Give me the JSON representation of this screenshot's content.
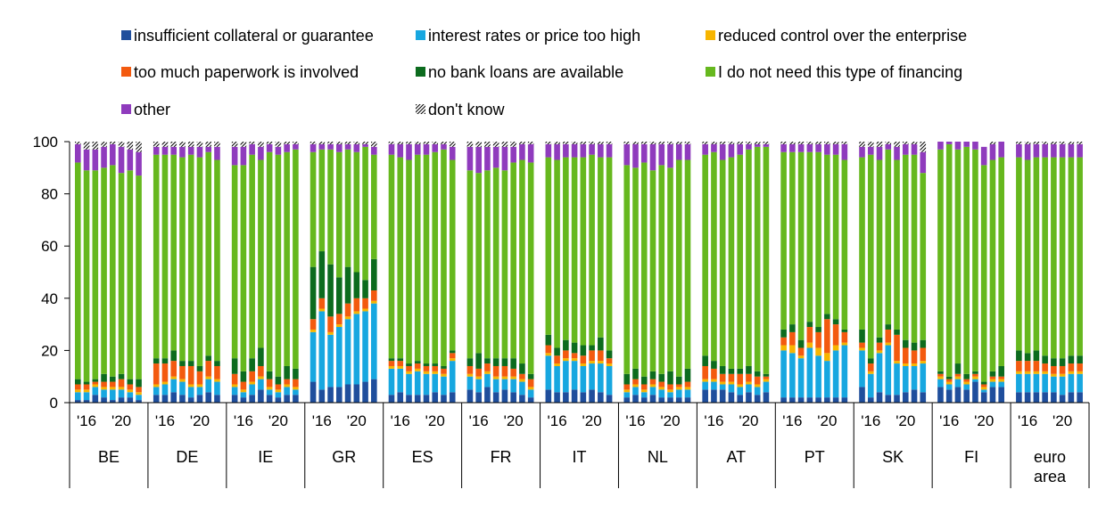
{
  "chart_data": {
    "type": "bar",
    "stacked": true,
    "ylim": [
      0,
      100
    ],
    "yticks": [
      0,
      20,
      40,
      60,
      80,
      100
    ],
    "grid": false,
    "legend_position": "top",
    "years_per_group": 8,
    "year_tick_labels": [
      "'16",
      "'20"
    ],
    "series": [
      {
        "name": "insufficient collateral or guarantee",
        "color": "#1f4e9c"
      },
      {
        "name": "interest rates or price too high",
        "color": "#17a7e0"
      },
      {
        "name": "reduced control over the enterprise",
        "color": "#f7b500"
      },
      {
        "name": "too much paperwork is involved",
        "color": "#f35a0f"
      },
      {
        "name": "no bank loans are available",
        "color": "#0c6b1e"
      },
      {
        "name": "I do not need this type of financing",
        "color": "#66b81e"
      },
      {
        "name": "other",
        "color": "#8f3bbd"
      },
      {
        "name": "don't know",
        "color": "#ffffff",
        "pattern": "hatch"
      }
    ],
    "groups": [
      {
        "label": [
          "BE"
        ],
        "bars": [
          [
            1,
            3,
            1,
            2,
            2,
            83,
            7,
            1
          ],
          [
            1,
            3,
            1,
            2,
            1,
            81,
            8,
            3
          ],
          [
            3,
            3,
            1,
            1,
            1,
            80,
            8,
            3
          ],
          [
            2,
            3,
            1,
            2,
            3,
            79,
            8,
            2
          ],
          [
            1,
            4,
            1,
            2,
            2,
            81,
            8,
            1
          ],
          [
            2,
            3,
            1,
            3,
            2,
            77,
            10,
            2
          ],
          [
            2,
            2,
            1,
            2,
            2,
            80,
            8,
            3
          ],
          [
            1,
            2,
            1,
            2,
            3,
            78,
            9,
            4
          ]
        ]
      },
      {
        "label": [
          "DE"
        ],
        "bars": [
          [
            3,
            3,
            1,
            8,
            2,
            78,
            3,
            2
          ],
          [
            3,
            4,
            1,
            7,
            2,
            78,
            3,
            2
          ],
          [
            4,
            5,
            1,
            6,
            4,
            75,
            3,
            2
          ],
          [
            3,
            5,
            1,
            5,
            2,
            78,
            4,
            2
          ],
          [
            2,
            4,
            1,
            7,
            2,
            79,
            3,
            2
          ],
          [
            3,
            3,
            1,
            5,
            2,
            80,
            4,
            2
          ],
          [
            4,
            5,
            1,
            6,
            2,
            78,
            2,
            2
          ],
          [
            3,
            5,
            1,
            5,
            2,
            77,
            5,
            2
          ]
        ]
      },
      {
        "label": [
          "IE"
        ],
        "bars": [
          [
            3,
            3,
            1,
            4,
            6,
            74,
            7,
            2
          ],
          [
            2,
            2,
            1,
            3,
            4,
            79,
            7,
            2
          ],
          [
            3,
            4,
            1,
            4,
            5,
            78,
            4,
            1
          ],
          [
            5,
            4,
            1,
            4,
            7,
            72,
            5,
            2
          ],
          [
            3,
            2,
            1,
            3,
            3,
            84,
            3,
            1
          ],
          [
            2,
            2,
            1,
            2,
            3,
            85,
            3,
            2
          ],
          [
            3,
            3,
            1,
            2,
            5,
            82,
            3,
            1
          ],
          [
            3,
            2,
            1,
            3,
            4,
            84,
            2,
            1
          ]
        ]
      },
      {
        "label": [
          "GR"
        ],
        "bars": [
          [
            8,
            19,
            1,
            4,
            20,
            44,
            3,
            1
          ],
          [
            5,
            30,
            1,
            4,
            18,
            39,
            2,
            1
          ],
          [
            6,
            20,
            1,
            6,
            20,
            44,
            2,
            1
          ],
          [
            6,
            23,
            1,
            4,
            14,
            48,
            3,
            1
          ],
          [
            7,
            25,
            1,
            5,
            14,
            45,
            2,
            1
          ],
          [
            7,
            27,
            1,
            5,
            10,
            46,
            3,
            1
          ],
          [
            8,
            27,
            1,
            4,
            7,
            51,
            1,
            1
          ],
          [
            9,
            29,
            1,
            4,
            12,
            40,
            3,
            2
          ]
        ]
      },
      {
        "label": [
          "ES"
        ],
        "bars": [
          [
            3,
            10,
            1,
            2,
            1,
            78,
            4,
            1
          ],
          [
            4,
            9,
            1,
            2,
            1,
            77,
            5,
            1
          ],
          [
            3,
            8,
            1,
            2,
            1,
            78,
            6,
            1
          ],
          [
            3,
            9,
            1,
            2,
            1,
            79,
            4,
            1
          ],
          [
            3,
            8,
            1,
            2,
            1,
            80,
            4,
            1
          ],
          [
            4,
            7,
            1,
            2,
            1,
            81,
            3,
            1
          ],
          [
            3,
            7,
            1,
            2,
            1,
            83,
            2,
            1
          ],
          [
            4,
            12,
            1,
            2,
            1,
            73,
            5,
            2
          ]
        ]
      },
      {
        "label": [
          "FR"
        ],
        "bars": [
          [
            5,
            5,
            1,
            3,
            3,
            72,
            9,
            2
          ],
          [
            4,
            5,
            1,
            3,
            6,
            69,
            10,
            2
          ],
          [
            6,
            5,
            1,
            3,
            2,
            72,
            9,
            2
          ],
          [
            4,
            5,
            1,
            4,
            3,
            73,
            8,
            2
          ],
          [
            5,
            4,
            1,
            4,
            3,
            72,
            9,
            2
          ],
          [
            4,
            5,
            1,
            3,
            4,
            75,
            6,
            2
          ],
          [
            3,
            5,
            1,
            2,
            4,
            78,
            6,
            1
          ],
          [
            2,
            3,
            1,
            3,
            2,
            81,
            7,
            1
          ]
        ]
      },
      {
        "label": [
          "IT"
        ],
        "bars": [
          [
            5,
            13,
            1,
            3,
            4,
            68,
            5,
            1
          ],
          [
            4,
            10,
            1,
            3,
            3,
            72,
            6,
            1
          ],
          [
            4,
            12,
            1,
            3,
            4,
            70,
            5,
            1
          ],
          [
            5,
            11,
            1,
            2,
            4,
            71,
            5,
            1
          ],
          [
            4,
            10,
            1,
            3,
            4,
            72,
            5,
            1
          ],
          [
            5,
            10,
            1,
            4,
            2,
            73,
            4,
            1
          ],
          [
            4,
            11,
            1,
            4,
            5,
            69,
            5,
            1
          ],
          [
            3,
            11,
            1,
            2,
            3,
            74,
            5,
            1
          ]
        ]
      },
      {
        "label": [
          "NL"
        ],
        "bars": [
          [
            2,
            2,
            1,
            2,
            4,
            80,
            8,
            1
          ],
          [
            3,
            3,
            1,
            2,
            4,
            77,
            9,
            1
          ],
          [
            2,
            2,
            1,
            2,
            3,
            82,
            7,
            1
          ],
          [
            3,
            3,
            1,
            2,
            3,
            77,
            10,
            1
          ],
          [
            2,
            3,
            1,
            2,
            3,
            80,
            8,
            1
          ],
          [
            2,
            2,
            1,
            2,
            5,
            78,
            9,
            1
          ],
          [
            2,
            3,
            1,
            1,
            3,
            83,
            6,
            1
          ],
          [
            2,
            3,
            1,
            2,
            5,
            80,
            6,
            1
          ]
        ]
      },
      {
        "label": [
          "AT"
        ],
        "bars": [
          [
            5,
            3,
            1,
            5,
            4,
            77,
            4,
            1
          ],
          [
            5,
            3,
            1,
            4,
            3,
            80,
            3,
            1
          ],
          [
            5,
            2,
            1,
            3,
            3,
            79,
            6,
            1
          ],
          [
            4,
            3,
            1,
            3,
            2,
            81,
            5,
            1
          ],
          [
            3,
            3,
            1,
            4,
            2,
            82,
            4,
            1
          ],
          [
            4,
            3,
            1,
            3,
            3,
            83,
            2,
            1
          ],
          [
            3,
            3,
            1,
            3,
            2,
            86,
            1,
            1
          ],
          [
            4,
            4,
            1,
            1,
            1,
            87,
            1,
            1
          ]
        ]
      },
      {
        "label": [
          "PT"
        ],
        "bars": [
          [
            2,
            18,
            2,
            3,
            3,
            68,
            3,
            1
          ],
          [
            2,
            17,
            3,
            5,
            3,
            66,
            3,
            1
          ],
          [
            2,
            15,
            1,
            3,
            3,
            72,
            3,
            1
          ],
          [
            2,
            19,
            2,
            6,
            2,
            65,
            3,
            1
          ],
          [
            2,
            16,
            3,
            6,
            2,
            67,
            3,
            1
          ],
          [
            2,
            14,
            3,
            13,
            2,
            61,
            4,
            1
          ],
          [
            2,
            18,
            2,
            8,
            2,
            63,
            4,
            1
          ],
          [
            2,
            20,
            1,
            4,
            1,
            65,
            6,
            1
          ]
        ]
      },
      {
        "label": [
          "SK"
        ],
        "bars": [
          [
            6,
            14,
            1,
            2,
            5,
            66,
            4,
            2
          ],
          [
            2,
            9,
            1,
            3,
            2,
            78,
            3,
            2
          ],
          [
            4,
            15,
            1,
            3,
            2,
            68,
            5,
            2
          ],
          [
            3,
            19,
            1,
            5,
            2,
            67,
            2,
            1
          ],
          [
            3,
            12,
            1,
            10,
            2,
            65,
            5,
            2
          ],
          [
            4,
            10,
            1,
            6,
            3,
            71,
            4,
            1
          ],
          [
            5,
            9,
            1,
            5,
            3,
            72,
            4,
            1
          ],
          [
            4,
            11,
            1,
            5,
            3,
            64,
            8,
            4
          ]
        ]
      },
      {
        "label": [
          "FI"
        ],
        "bars": [
          [
            6,
            3,
            1,
            1,
            1,
            85,
            3,
            0
          ],
          [
            5,
            2,
            1,
            1,
            1,
            89,
            1,
            0
          ],
          [
            6,
            3,
            1,
            1,
            4,
            82,
            3,
            0
          ],
          [
            5,
            2,
            1,
            1,
            2,
            87,
            2,
            0
          ],
          [
            8,
            1,
            1,
            1,
            1,
            85,
            3,
            0
          ],
          [
            4,
            1,
            1,
            1,
            1,
            83,
            7,
            0
          ],
          [
            6,
            2,
            1,
            1,
            2,
            81,
            6,
            1
          ],
          [
            6,
            2,
            1,
            1,
            4,
            80,
            6,
            0
          ]
        ]
      },
      {
        "label": [
          "euro",
          "area"
        ],
        "bars": [
          [
            4,
            7,
            1,
            4,
            4,
            74,
            5,
            1
          ],
          [
            4,
            7,
            1,
            4,
            3,
            74,
            6,
            1
          ],
          [
            4,
            7,
            1,
            4,
            4,
            74,
            5,
            1
          ],
          [
            4,
            7,
            1,
            3,
            3,
            76,
            5,
            1
          ],
          [
            4,
            6,
            1,
            3,
            3,
            77,
            5,
            1
          ],
          [
            3,
            7,
            1,
            3,
            3,
            77,
            5,
            1
          ],
          [
            4,
            7,
            1,
            3,
            3,
            76,
            5,
            1
          ],
          [
            4,
            7,
            1,
            3,
            3,
            76,
            5,
            1
          ]
        ]
      }
    ]
  }
}
